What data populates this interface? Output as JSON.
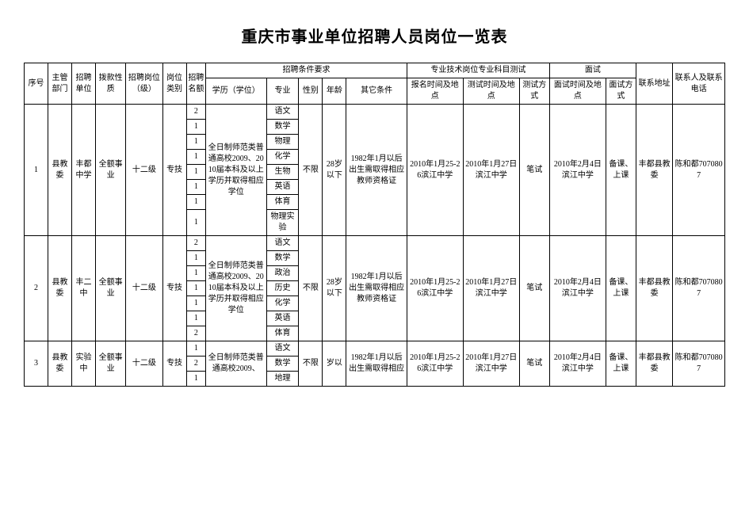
{
  "title": "重庆市事业单位招聘人员岗位一览表",
  "headers": {
    "seq": "序号",
    "dept": "主管部门",
    "unit": "招聘单位",
    "fund": "拨款性质",
    "post": "招聘岗位（级）",
    "cat": "岗位类别",
    "qty": "招聘名额",
    "reqGroup": "招聘条件要求",
    "edu": "学历（学位）",
    "major": "专业",
    "sex": "性别",
    "age": "年龄",
    "other": "其它条件",
    "examGroup": "专业技术岗位专业科目测试",
    "regTime": "报名时间及地点",
    "testTime": "测试时间及地点",
    "testWay": "测试方式",
    "intGroup": "面试",
    "intTime": "面试时间及地点",
    "intWay": "面试方式",
    "addr": "联系地址",
    "contact": "联系人及联系电话"
  },
  "rows": [
    {
      "seq": "1",
      "dept": "县教委",
      "unit": "丰都中学",
      "fund": "全额事业",
      "post": "十二级",
      "cat": "专技",
      "edu": "全日制师范类普通高校2009、2010届本科及以上学历并取得相应学位",
      "subjects": [
        {
          "q": "2",
          "s": "语文"
        },
        {
          "q": "1",
          "s": "数学"
        },
        {
          "q": "1",
          "s": "物理"
        },
        {
          "q": "1",
          "s": "化学"
        },
        {
          "q": "1",
          "s": "生物"
        },
        {
          "q": "1",
          "s": "英语"
        },
        {
          "q": "1",
          "s": "体育"
        },
        {
          "q": "1",
          "s": "物理实验"
        }
      ],
      "sex": "不限",
      "age": "28岁以下",
      "other": "1982年1月以后出生需取得相应教师资格证",
      "regTime": "2010年1月25-26滨江中学",
      "testTime": "2010年1月27日滨江中学",
      "testWay": "笔试",
      "intTime": "2010年2月4日滨江中学",
      "intWay": "备课、上课",
      "addr": "丰都县教委",
      "contact": "陈和都7070807"
    },
    {
      "seq": "2",
      "dept": "县教委",
      "unit": "丰二中",
      "fund": "全额事业",
      "post": "十二级",
      "cat": "专技",
      "edu": "全日制师范类普通高校2009、2010届本科及以上学历并取得相应学位",
      "subjects": [
        {
          "q": "2",
          "s": "语文"
        },
        {
          "q": "1",
          "s": "数学"
        },
        {
          "q": "1",
          "s": "政治"
        },
        {
          "q": "1",
          "s": "历史"
        },
        {
          "q": "1",
          "s": "化学"
        },
        {
          "q": "1",
          "s": "英语"
        },
        {
          "q": "2",
          "s": "体育"
        }
      ],
      "sex": "不限",
      "age": "28岁以下",
      "other": "1982年1月以后出生需取得相应教师资格证",
      "regTime": "2010年1月25-26滨江中学",
      "testTime": "2010年1月27日滨江中学",
      "testWay": "笔试",
      "intTime": "2010年2月4日滨江中学",
      "intWay": "备课、上课",
      "addr": "丰都县教委",
      "contact": "陈和都7070807"
    },
    {
      "seq": "3",
      "dept": "县教委",
      "unit": "实验中",
      "fund": "全额事业",
      "post": "十二级",
      "cat": "专技",
      "edu": "全日制师范类普通高校2009、",
      "subjects": [
        {
          "q": "1",
          "s": "语文"
        },
        {
          "q": "2",
          "s": "数学"
        },
        {
          "q": "1",
          "s": "地理"
        }
      ],
      "sex": "不限",
      "age": "岁以",
      "other": "1982年1月以后出生需取得相应",
      "regTime": "2010年1月25-26滨江中学",
      "testTime": "2010年1月27日滨江中学",
      "testWay": "笔试",
      "intTime": "2010年2月4日滨江中学",
      "intWay": "备课、上课",
      "addr": "丰都县教委",
      "contact": "陈和都7070807"
    }
  ]
}
